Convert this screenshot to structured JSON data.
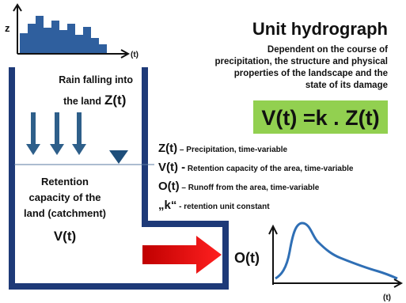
{
  "histogram": {
    "y_label": "z",
    "x_label": "(t)"
  },
  "title": "Unit hydrograph",
  "subtitle_lines": [
    "Dependent on the course of",
    "precipitation, the structure and physical",
    "properties of the landscape and the",
    "state of its damage"
  ],
  "formula": "V(t) =k . Z(t)",
  "rain": {
    "line1": "Rain falling into",
    "line2": "the land",
    "symbol": "Z(t)"
  },
  "retention": {
    "lines": [
      "Retention",
      "capacity of the",
      "land (catchment)"
    ],
    "symbol": "V(t)"
  },
  "legend": [
    {
      "symbol": "Z(t)",
      "text": " – Precipitation, time-variable"
    },
    {
      "symbol": "V(t) -",
      "text": " Retention capacity of the area, time-variable"
    },
    {
      "symbol": "O(t)",
      "text": " – Runoff from the area, time-variable"
    },
    {
      "symbol": "„k“",
      "text": " - retention unit constant"
    }
  ],
  "hydrograph": {
    "y_label": "O(t)",
    "x_label": "(t)"
  }
}
